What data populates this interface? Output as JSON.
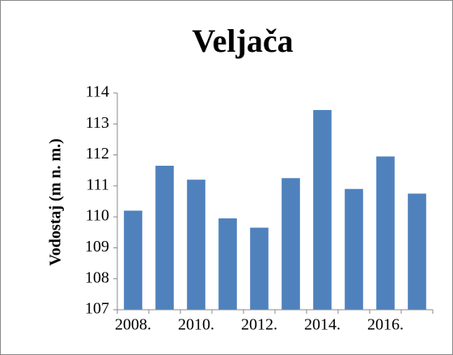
{
  "chart_data": {
    "type": "bar",
    "title": "Veljača",
    "y_label": "Vodostaj (m n. m.)",
    "categories": [
      "2008.",
      null,
      "2010.",
      null,
      "2012.",
      null,
      "2014.",
      null,
      "2016.",
      null
    ],
    "values": [
      110.2,
      111.65,
      111.2,
      109.95,
      109.65,
      111.25,
      113.45,
      110.9,
      111.95,
      110.75
    ],
    "color": "#4f81bd",
    "ylim": [
      107,
      114
    ],
    "yticks": [
      107,
      108,
      109,
      110,
      111,
      112,
      113,
      114
    ],
    "grid": false
  }
}
